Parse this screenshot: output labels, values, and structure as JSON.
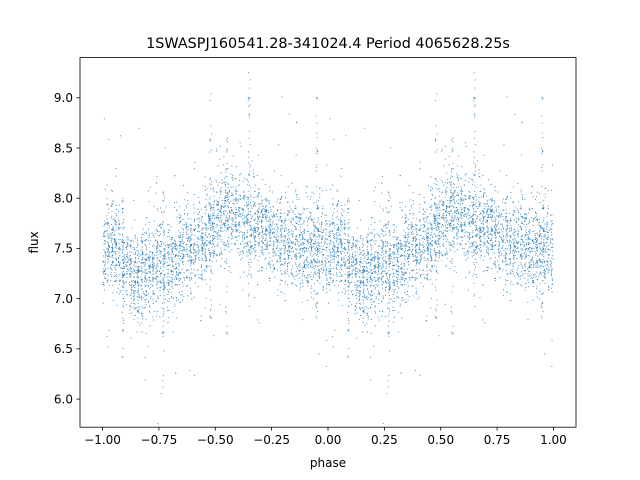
{
  "chart_data": {
    "type": "scatter",
    "title": "1SWASPJ160541.28-341024.4 Period 4065628.25s",
    "xlabel": "phase",
    "ylabel": "flux",
    "xlim": [
      -1.1,
      1.1
    ],
    "ylim": [
      5.72,
      9.4
    ],
    "x_ticks": [
      -1.0,
      -0.75,
      -0.5,
      -0.25,
      0.0,
      0.25,
      0.5,
      0.75,
      1.0
    ],
    "x_tick_labels": [
      "−1.00",
      "−0.75",
      "−0.50",
      "−0.25",
      "0.00",
      "0.25",
      "0.50",
      "0.75",
      "1.00"
    ],
    "y_ticks": [
      6.0,
      6.5,
      7.0,
      7.5,
      8.0,
      8.5,
      9.0
    ],
    "y_tick_labels": [
      "6.0",
      "6.5",
      "7.0",
      "7.5",
      "8.0",
      "8.5",
      "9.0"
    ],
    "grid": false,
    "legend": "none",
    "marker_color": "#1f77b4",
    "phase_profile": [
      {
        "phase": 0.0,
        "flux": 7.45
      },
      {
        "phase": 0.05,
        "flux": 7.55
      },
      {
        "phase": 0.1,
        "flux": 7.35
      },
      {
        "phase": 0.15,
        "flux": 7.2
      },
      {
        "phase": 0.2,
        "flux": 7.25
      },
      {
        "phase": 0.25,
        "flux": 7.35
      },
      {
        "phase": 0.3,
        "flux": 7.3
      },
      {
        "phase": 0.35,
        "flux": 7.45
      },
      {
        "phase": 0.4,
        "flux": 7.5
      },
      {
        "phase": 0.45,
        "flux": 7.6
      },
      {
        "phase": 0.5,
        "flux": 7.75
      },
      {
        "phase": 0.55,
        "flux": 7.85
      },
      {
        "phase": 0.6,
        "flux": 7.8
      },
      {
        "phase": 0.65,
        "flux": 7.75
      },
      {
        "phase": 0.7,
        "flux": 7.7
      },
      {
        "phase": 0.75,
        "flux": 7.65
      },
      {
        "phase": 0.8,
        "flux": 7.5
      },
      {
        "phase": 0.85,
        "flux": 7.55
      },
      {
        "phase": 0.9,
        "flux": 7.5
      },
      {
        "phase": 0.95,
        "flux": 7.55
      },
      {
        "phase": 1.0,
        "flux": 7.45
      }
    ],
    "flux_scatter": 0.22,
    "notable_columns": [
      {
        "phase": 0.48,
        "flux_high": 9.15,
        "flux_low": 6.8
      },
      {
        "phase": 0.65,
        "flux_high": 9.25,
        "flux_low": 6.9
      },
      {
        "phase": 0.27,
        "flux_high": 8.1,
        "flux_low": 5.9
      },
      {
        "phase": 0.09,
        "flux_high": 8.0,
        "flux_low": 6.4
      },
      {
        "phase": 0.95,
        "flux_high": 9.05,
        "flux_low": 6.6
      },
      {
        "phase": 0.55,
        "flux_high": 8.6,
        "flux_low": 6.6
      }
    ]
  }
}
